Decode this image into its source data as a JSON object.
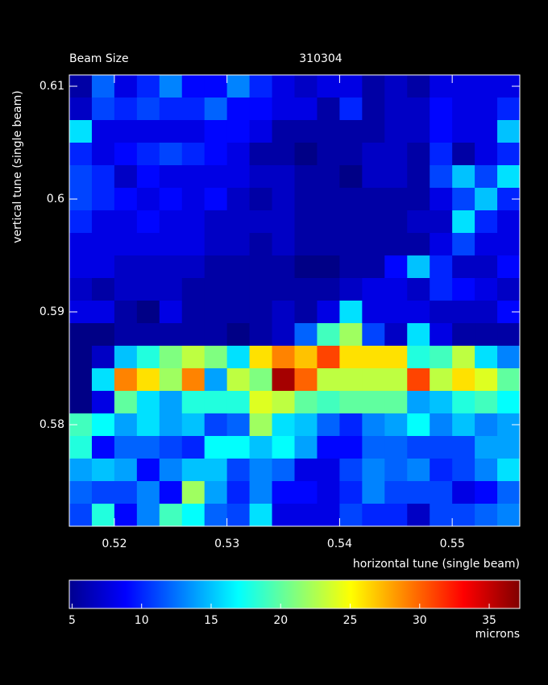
{
  "chart_data": {
    "type": "heatmap",
    "title": "Beam Size",
    "subtitle": "310304",
    "xlabel": "horizontal tune (single beam)",
    "ylabel": "vertical tune (single beam)",
    "colorbar_label": "microns",
    "colormap": "jet",
    "x": [
      0.517,
      0.519,
      0.521,
      0.523,
      0.525,
      0.527,
      0.529,
      0.531,
      0.533,
      0.535,
      0.537,
      0.539,
      0.541,
      0.543,
      0.545,
      0.547,
      0.549,
      0.551,
      0.553,
      0.555
    ],
    "y": [
      0.61,
      0.608,
      0.606,
      0.604,
      0.602,
      0.6,
      0.598,
      0.596,
      0.594,
      0.592,
      0.59,
      0.588,
      0.586,
      0.584,
      0.582,
      0.58,
      0.578,
      0.576,
      0.574,
      0.572
    ],
    "values": [
      [
        6,
        12,
        8,
        10,
        13,
        9,
        9,
        13,
        10,
        8,
        7,
        8,
        8,
        6,
        7,
        6,
        8,
        8,
        8,
        8
      ],
      [
        7,
        11,
        10,
        11,
        10,
        10,
        12,
        9,
        9,
        8,
        8,
        6,
        10,
        6,
        7,
        7,
        9,
        8,
        8,
        10
      ],
      [
        16,
        8,
        8,
        8,
        8,
        8,
        9,
        9,
        8,
        6,
        6,
        6,
        6,
        6,
        7,
        7,
        9,
        8,
        8,
        15
      ],
      [
        10,
        8,
        9,
        10,
        11,
        10,
        9,
        8,
        6,
        6,
        5,
        6,
        6,
        7,
        7,
        6,
        10,
        6,
        8,
        10
      ],
      [
        11,
        10,
        7,
        9,
        8,
        8,
        8,
        8,
        7,
        7,
        6,
        6,
        5,
        7,
        7,
        6,
        11,
        15,
        11,
        16
      ],
      [
        11,
        10,
        9,
        8,
        9,
        8,
        9,
        7,
        6,
        7,
        6,
        6,
        6,
        6,
        6,
        6,
        8,
        11,
        15,
        10
      ],
      [
        10,
        8,
        8,
        9,
        8,
        8,
        7,
        7,
        7,
        7,
        6,
        6,
        6,
        6,
        6,
        7,
        7,
        16,
        10,
        8
      ],
      [
        8,
        8,
        8,
        8,
        8,
        8,
        7,
        7,
        6,
        7,
        6,
        6,
        6,
        6,
        6,
        6,
        8,
        11,
        8,
        8
      ],
      [
        8,
        8,
        7,
        7,
        7,
        7,
        6,
        6,
        6,
        6,
        5,
        5,
        6,
        6,
        9,
        15,
        10,
        7,
        7,
        9
      ],
      [
        7,
        6,
        7,
        7,
        7,
        6,
        6,
        6,
        6,
        6,
        6,
        6,
        7,
        8,
        8,
        7,
        10,
        9,
        8,
        7
      ],
      [
        8,
        8,
        6,
        5,
        8,
        6,
        6,
        6,
        6,
        7,
        6,
        8,
        16,
        8,
        8,
        8,
        7,
        7,
        7,
        9
      ],
      [
        5,
        5,
        6,
        6,
        6,
        6,
        6,
        5,
        6,
        7,
        12,
        19,
        22,
        11,
        7,
        16,
        8,
        6,
        6,
        6
      ],
      [
        5,
        7,
        15,
        18,
        21,
        23,
        21,
        16,
        26,
        29,
        27,
        31,
        26,
        26,
        26,
        18,
        19,
        23,
        16,
        13
      ],
      [
        5,
        16,
        29,
        26,
        22,
        29,
        14,
        23,
        21,
        36,
        30,
        23,
        23,
        23,
        23,
        31,
        23,
        26,
        24,
        20
      ],
      [
        5,
        8,
        20,
        16,
        14,
        18,
        18,
        18,
        24,
        23,
        20,
        19,
        20,
        20,
        20,
        14,
        15,
        18,
        19,
        17
      ],
      [
        19,
        17,
        14,
        16,
        14,
        15,
        11,
        12,
        22,
        16,
        15,
        12,
        10,
        13,
        14,
        17,
        13,
        15,
        13,
        14
      ],
      [
        18,
        9,
        12,
        12,
        11,
        10,
        17,
        17,
        15,
        17,
        14,
        9,
        9,
        12,
        12,
        11,
        11,
        11,
        14,
        14
      ],
      [
        14,
        15,
        14,
        9,
        13,
        15,
        15,
        11,
        13,
        12,
        8,
        8,
        11,
        13,
        12,
        13,
        10,
        11,
        13,
        16
      ],
      [
        12,
        11,
        11,
        13,
        9,
        22,
        14,
        10,
        13,
        9,
        9,
        8,
        10,
        13,
        11,
        11,
        11,
        8,
        9,
        12
      ],
      [
        11,
        18,
        9,
        13,
        19,
        17,
        12,
        11,
        16,
        8,
        8,
        8,
        11,
        10,
        10,
        7,
        11,
        11,
        12,
        13
      ]
    ],
    "xlim": [
      0.516,
      0.556
    ],
    "ylim": [
      0.571,
      0.611
    ],
    "xticks": [
      0.52,
      0.53,
      0.54,
      0.55
    ],
    "yticks": [
      0.58,
      0.59,
      0.6,
      0.61
    ],
    "clim": [
      4.8,
      37.2
    ],
    "cticks": [
      5,
      10,
      15,
      20,
      25,
      30,
      35
    ]
  }
}
